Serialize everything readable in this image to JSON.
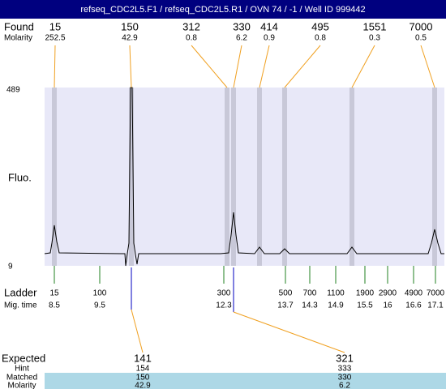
{
  "header": {
    "title": "refseq_CDC2L5.F1 / refseq_CDC2L5.R1 / OVN 74 / -1 / Well ID 999442"
  },
  "found": {
    "label": "Found",
    "molarity_label": "Molarity",
    "peaks": [
      {
        "size": 15,
        "molarity": 252.5
      },
      {
        "size": 150,
        "molarity": 42.9
      },
      {
        "size": 312,
        "molarity": 0.8
      },
      {
        "size": 330,
        "molarity": 6.2
      },
      {
        "size": 414,
        "molarity": 0.9
      },
      {
        "size": 495,
        "molarity": 0.8
      },
      {
        "size": 1551,
        "molarity": 0.3
      },
      {
        "size": 7000,
        "molarity": 0.5
      }
    ]
  },
  "plot": {
    "y_max": 489,
    "y_min": 9,
    "y_label": "Fluo."
  },
  "ladder": {
    "label": "Ladder",
    "time_label": "Mig. time",
    "sizes": [
      15,
      100,
      300,
      500,
      700,
      1100,
      1900,
      2900,
      4900,
      7000
    ],
    "times": [
      8.5,
      9.5,
      12.3,
      13.7,
      14.3,
      14.9,
      15.5,
      16,
      16.6,
      17.1
    ]
  },
  "expected": {
    "label": "Expected",
    "hint_label": "Hint",
    "matched_label": "Matched",
    "molarity_label": "Molarity",
    "items": [
      {
        "expected": 141,
        "hint": 154,
        "matched": 150,
        "molarity": 42.9
      },
      {
        "expected": 321,
        "hint": 333,
        "matched": 330,
        "molarity": 6.2
      }
    ]
  }
}
